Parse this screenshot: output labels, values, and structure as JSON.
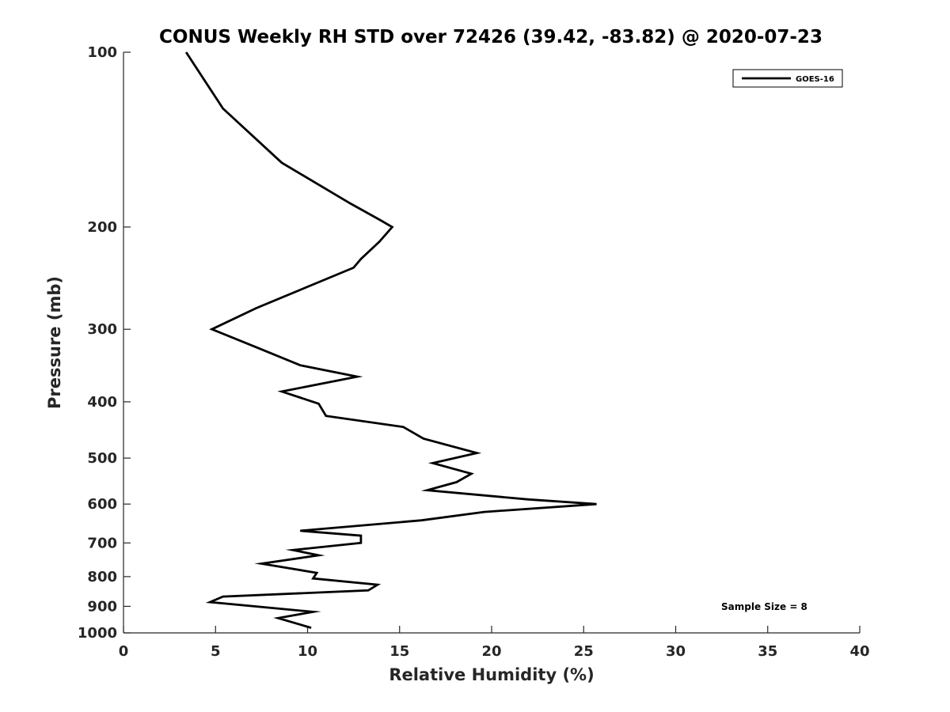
{
  "chart_data": {
    "type": "line",
    "title": "CONUS Weekly RH STD over 72426 (39.42, -83.82) @ 2020-07-23",
    "xlabel": "Relative Humidity (%)",
    "ylabel": "Pressure (mb)",
    "xlim": [
      0,
      40
    ],
    "ylim": [
      100,
      1000
    ],
    "y_scale": "log",
    "y_reversed": true,
    "x_ticks": [
      "0",
      "5",
      "10",
      "15",
      "20",
      "25",
      "30",
      "35",
      "40"
    ],
    "y_ticks": [
      "100",
      "200",
      "300",
      "400",
      "500",
      "600",
      "700",
      "800",
      "900",
      "1000"
    ],
    "grid": false,
    "legend_position": "top-right",
    "annotation": "Sample Size = 8",
    "series": [
      {
        "name": "GOES-16",
        "color": "#000000",
        "points": [
          [
            3.4,
            100
          ],
          [
            5.4,
            125
          ],
          [
            8.6,
            155
          ],
          [
            12.3,
            182
          ],
          [
            14.0,
            195
          ],
          [
            14.6,
            200
          ],
          [
            13.9,
            212
          ],
          [
            12.9,
            227
          ],
          [
            12.5,
            235
          ],
          [
            7.2,
            276
          ],
          [
            4.8,
            300
          ],
          [
            7.2,
            322
          ],
          [
            9.6,
            346
          ],
          [
            12.7,
            362
          ],
          [
            8.6,
            384
          ],
          [
            10.6,
            403
          ],
          [
            11.0,
            423
          ],
          [
            15.2,
            442
          ],
          [
            16.3,
            463
          ],
          [
            19.2,
            490
          ],
          [
            16.8,
            510
          ],
          [
            18.9,
            532
          ],
          [
            18.1,
            550
          ],
          [
            16.5,
            568
          ],
          [
            22.0,
            589
          ],
          [
            25.7,
            600
          ],
          [
            19.6,
            619
          ],
          [
            16.2,
            640
          ],
          [
            9.6,
            667
          ],
          [
            12.9,
            680
          ],
          [
            12.9,
            700
          ],
          [
            9.2,
            720
          ],
          [
            10.6,
            735
          ],
          [
            7.5,
            760
          ],
          [
            10.5,
            788
          ],
          [
            10.3,
            806
          ],
          [
            13.8,
            826
          ],
          [
            13.3,
            845
          ],
          [
            5.4,
            866
          ],
          [
            4.7,
            885
          ],
          [
            10.3,
            920
          ],
          [
            8.4,
            943
          ],
          [
            10.2,
            980
          ]
        ]
      }
    ]
  }
}
